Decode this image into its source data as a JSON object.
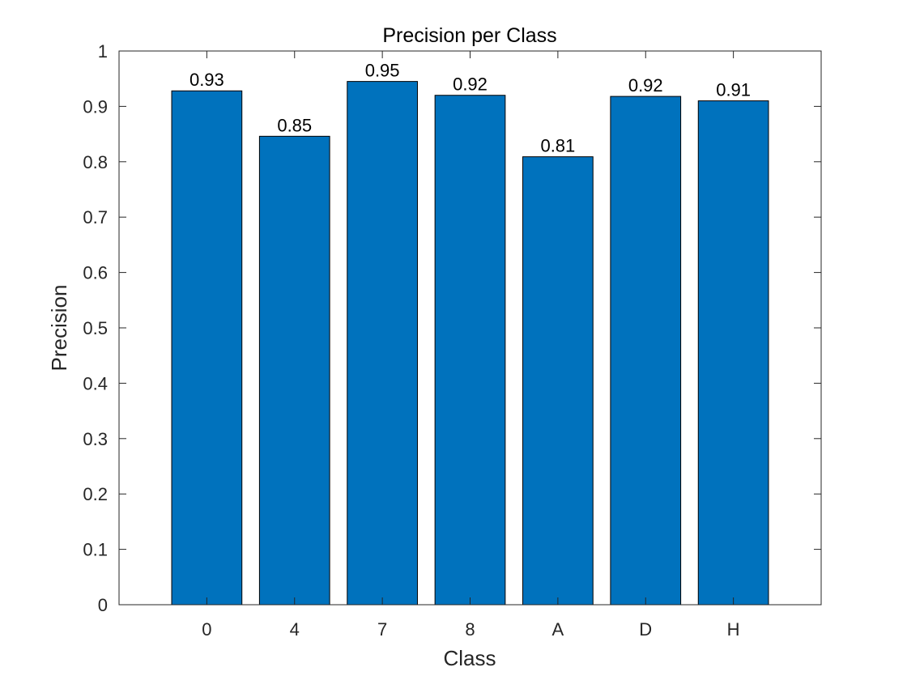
{
  "chart_data": {
    "type": "bar",
    "title": "Precision per Class",
    "xlabel": "Class",
    "ylabel": "Precision",
    "categories": [
      "0",
      "4",
      "7",
      "8",
      "A",
      "D",
      "H"
    ],
    "values": [
      0.928,
      0.846,
      0.945,
      0.92,
      0.809,
      0.918,
      0.91
    ],
    "data_labels": [
      "0.93",
      "0.85",
      "0.95",
      "0.92",
      "0.81",
      "0.92",
      "0.91"
    ],
    "ylim": [
      0,
      1
    ],
    "yticks": [
      "0",
      "0.1",
      "0.2",
      "0.3",
      "0.4",
      "0.5",
      "0.6",
      "0.7",
      "0.8",
      "0.9",
      "1"
    ],
    "grid": false,
    "legend": "none",
    "colors": {
      "bar_fill": "#0072BD",
      "bar_edge": "#000000",
      "axis": "#262626"
    }
  }
}
